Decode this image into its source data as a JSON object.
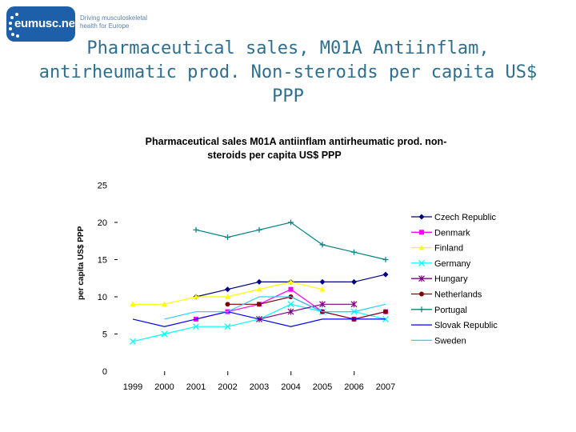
{
  "logo": {
    "name": "eumusc.net",
    "tagline": "Driving musculoskeletal health for Europe"
  },
  "slide_title": "Pharmaceutical sales, M01A Antiinflam, antirheumatic prod. Non-steroids per capita US$ PPP",
  "chart_data": {
    "type": "line",
    "title": "Pharmaceutical sales M01A antiinflam antirheumatic prod. non-steroids per capita US$ PPP",
    "title_lines": [
      "Pharmaceutical sales M01A antiinflam antirheumatic prod. non-",
      "steroids per capita US$ PPP"
    ],
    "xlabel": "",
    "ylabel": "per capita US$ PPP",
    "x": [
      "1999",
      "2000",
      "2001",
      "2002",
      "2003",
      "2004",
      "2005",
      "2006",
      "2007"
    ],
    "ylim": [
      0,
      25
    ],
    "yticks": [
      "0",
      "5",
      "10",
      "15",
      "20",
      "25"
    ],
    "grid": false,
    "legend_position": "right",
    "series": [
      {
        "name": "Czech Republic",
        "color": "#000080",
        "marker": "diamond",
        "values": [
          null,
          null,
          10,
          11,
          12,
          12,
          12,
          12,
          13
        ]
      },
      {
        "name": "Denmark",
        "color": "#ff00ff",
        "marker": "square",
        "values": [
          null,
          null,
          7,
          8,
          9,
          11,
          8,
          7,
          8
        ]
      },
      {
        "name": "Finland",
        "color": "#ffff00",
        "marker": "triangle",
        "values": [
          9,
          9,
          10,
          10,
          11,
          12,
          11,
          null,
          null
        ]
      },
      {
        "name": "Germany",
        "color": "#00ffff",
        "marker": "x",
        "values": [
          4,
          5,
          6,
          6,
          7,
          9,
          8,
          8,
          7
        ]
      },
      {
        "name": "Hungary",
        "color": "#800080",
        "marker": "star",
        "values": [
          null,
          null,
          null,
          null,
          7,
          8,
          9,
          9,
          null
        ]
      },
      {
        "name": "Netherlands",
        "color": "#800000",
        "marker": "circle",
        "values": [
          null,
          null,
          null,
          9,
          9,
          10,
          8,
          7,
          8
        ]
      },
      {
        "name": "Portugal",
        "color": "#008080",
        "marker": "plus",
        "values": [
          null,
          null,
          19,
          18,
          19,
          20,
          17,
          16,
          15
        ]
      },
      {
        "name": "Slovak Republic",
        "color": "#0000ff",
        "marker": "dash",
        "values": [
          7,
          6,
          7,
          8,
          7,
          6,
          7,
          7,
          7
        ]
      },
      {
        "name": "Sweden",
        "color": "#33ccff",
        "marker": "dash",
        "values": [
          null,
          7,
          8,
          8,
          10,
          10,
          8,
          8,
          9
        ]
      }
    ]
  }
}
